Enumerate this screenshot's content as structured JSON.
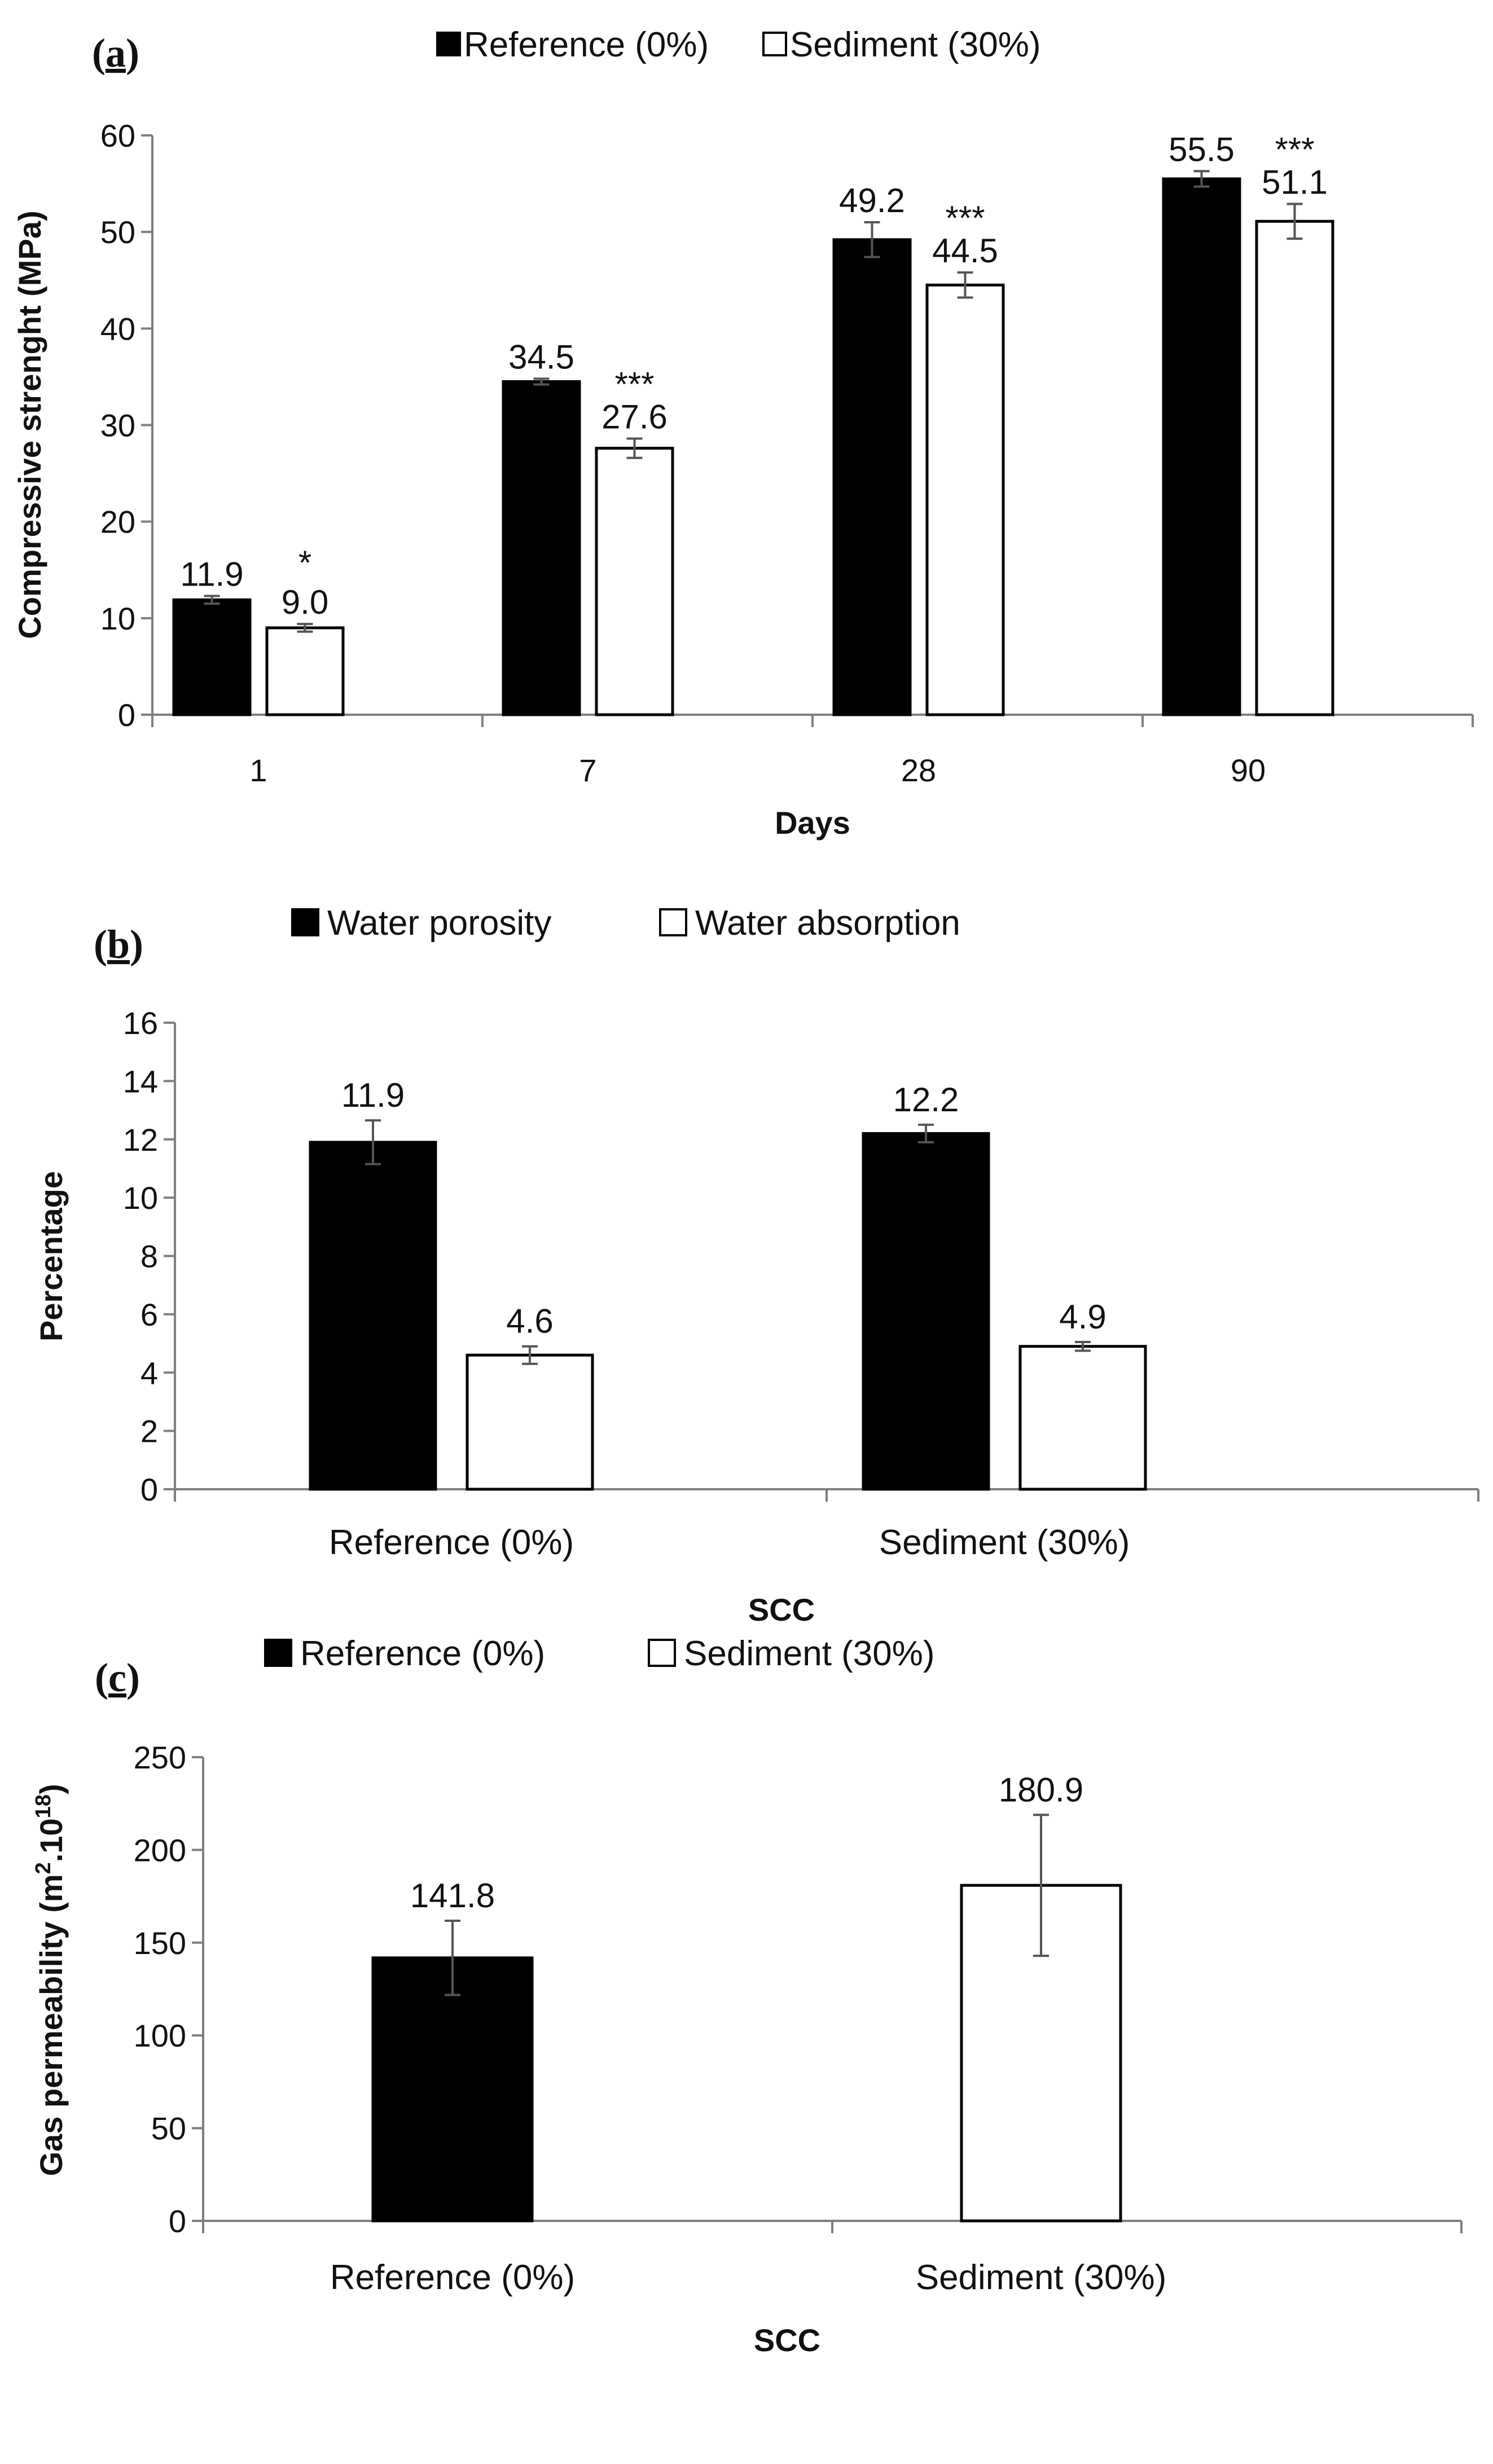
{
  "chart_data": [
    {
      "type": "bar",
      "panel_label": "a",
      "categories": [
        "1",
        "7",
        "28",
        "90"
      ],
      "series": [
        {
          "name": "Reference (0%)",
          "values": [
            11.9,
            34.5,
            49.2,
            55.5
          ],
          "error": [
            0.4,
            0.3,
            1.8,
            0.8
          ],
          "labels": [
            "11.9",
            "34.5",
            "49.2",
            "55.5"
          ],
          "significance": [
            "",
            "",
            "",
            ""
          ]
        },
        {
          "name": "Sediment (30%)",
          "values": [
            9.0,
            27.6,
            44.5,
            51.1
          ],
          "error": [
            0.4,
            1.0,
            1.3,
            1.8
          ],
          "labels": [
            "9.0",
            "27.6",
            "44.5",
            "51.1"
          ],
          "significance": [
            "*",
            "***",
            "***",
            "***"
          ]
        }
      ],
      "xlabel": "Days",
      "ylabel": "Compressive strenght (MPa)",
      "ylim": [
        0,
        60
      ],
      "yticks": [
        "0",
        "10",
        "20",
        "30",
        "40",
        "50",
        "60"
      ],
      "legend": "top"
    },
    {
      "type": "bar",
      "panel_label": "b",
      "categories": [
        "Reference (0%)",
        "Sediment (30%)"
      ],
      "series": [
        {
          "name": "Water porosity",
          "values": [
            11.9,
            12.2
          ],
          "error": [
            0.75,
            0.3
          ],
          "labels": [
            "11.9",
            "12.2"
          ],
          "significance": [
            "",
            ""
          ]
        },
        {
          "name": "Water absorption",
          "values": [
            4.6,
            4.9
          ],
          "error": [
            0.3,
            0.15
          ],
          "labels": [
            "4.6",
            "4.9"
          ],
          "significance": [
            "",
            ""
          ]
        }
      ],
      "xlabel": "SCC",
      "ylabel": "Percentage",
      "ylim": [
        0,
        16
      ],
      "yticks": [
        "0",
        "2",
        "4",
        "6",
        "8",
        "10",
        "12",
        "14",
        "16"
      ],
      "legend": "top"
    },
    {
      "type": "bar",
      "panel_label": "c",
      "categories": [
        "Reference (0%)",
        "Sediment (30%)"
      ],
      "series": [
        {
          "name": "Reference (0%)",
          "values": [
            141.8,
            null
          ],
          "error": [
            20,
            null
          ],
          "labels": [
            "141.8",
            ""
          ],
          "significance": [
            "",
            ""
          ]
        },
        {
          "name": "Sediment (30%)",
          "values": [
            null,
            180.9
          ],
          "error": [
            null,
            38
          ],
          "labels": [
            "",
            "180.9"
          ],
          "significance": [
            "",
            ""
          ]
        }
      ],
      "xlabel": "SCC",
      "ylabel": "Gas permeability (m",
      "ylabel_sup1": "2",
      "ylabel_mid": ".10",
      "ylabel_sup2": "18",
      "ylabel_end": ")",
      "ylim": [
        0,
        250
      ],
      "yticks": [
        "0",
        "50",
        "100",
        "150",
        "200",
        "250"
      ],
      "legend": "top"
    }
  ],
  "colors": {
    "reference": "#000000",
    "sediment": "#ffffff",
    "bar_stroke": "#000000",
    "axis": "#7f7f7f",
    "error_bar": "#555555"
  }
}
